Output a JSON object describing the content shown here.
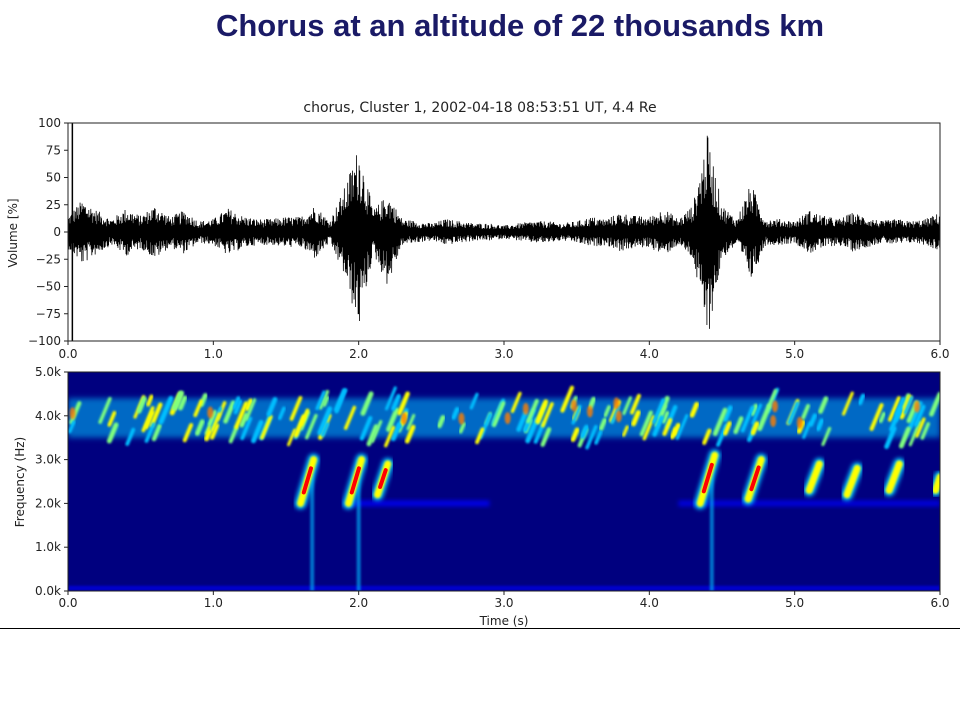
{
  "slide": {
    "title": "Chorus at an altitude of 22 thousands km"
  },
  "chart_data": [
    {
      "type": "line",
      "title": "chorus, Cluster 1, 2002-04-18 08:53:51 UT, 4.4 Re",
      "xlabel": "",
      "ylabel": "Volume [%]",
      "xlim": [
        0,
        6
      ],
      "ylim": [
        -100,
        100
      ],
      "xticks": [
        0.0,
        1.0,
        2.0,
        3.0,
        4.0,
        5.0,
        6.0
      ],
      "xtick_labels": [
        "0.0",
        "1.0",
        "2.0",
        "3.0",
        "4.0",
        "5.0",
        "6.0"
      ],
      "yticks": [
        100,
        75,
        50,
        25,
        0,
        -25,
        -50,
        -75,
        -100
      ],
      "ytick_labels": [
        "100",
        "75",
        "50",
        "25",
        "0",
        "−25",
        "−50",
        "−75",
        "−100"
      ],
      "color": "#000000",
      "grid": false,
      "series": [
        {
          "x": [
            0.0,
            0.1,
            0.2,
            0.3,
            0.4,
            0.5,
            0.6,
            0.7,
            0.8,
            0.9,
            1.0,
            1.1,
            1.2,
            1.3,
            1.4,
            1.5,
            1.6,
            1.7,
            1.8,
            1.9,
            2.0,
            2.1,
            2.2,
            2.3,
            2.4,
            2.5,
            2.6,
            2.7,
            2.8,
            2.9,
            3.0,
            3.1,
            3.2,
            3.3,
            3.4,
            3.5,
            3.6,
            3.7,
            3.8,
            3.9,
            4.0,
            4.1,
            4.2,
            4.3,
            4.4,
            4.5,
            4.6,
            4.7,
            4.8,
            4.9,
            5.0,
            5.1,
            5.2,
            5.3,
            5.4,
            5.5,
            5.6,
            5.7,
            5.8,
            5.9,
            6.0
          ],
          "y_max": [
            15,
            30,
            20,
            12,
            22,
            15,
            25,
            14,
            20,
            10,
            12,
            22,
            15,
            12,
            12,
            14,
            14,
            25,
            10,
            40,
            80,
            20,
            35,
            12,
            10,
            8,
            12,
            10,
            8,
            8,
            6,
            8,
            10,
            10,
            8,
            10,
            14,
            12,
            18,
            15,
            14,
            22,
            12,
            25,
            90,
            25,
            12,
            45,
            12,
            12,
            10,
            20,
            15,
            12,
            18,
            14,
            10,
            12,
            10,
            12,
            18
          ],
          "y_min": [
            -15,
            -30,
            -20,
            -12,
            -22,
            -15,
            -25,
            -14,
            -20,
            -10,
            -12,
            -22,
            -15,
            -12,
            -12,
            -14,
            -14,
            -25,
            -10,
            -40,
            -90,
            -20,
            -50,
            -12,
            -10,
            -8,
            -12,
            -10,
            -8,
            -8,
            -6,
            -8,
            -10,
            -10,
            -8,
            -10,
            -14,
            -12,
            -18,
            -15,
            -14,
            -22,
            -12,
            -25,
            -100,
            -25,
            -12,
            -45,
            -12,
            -12,
            -10,
            -20,
            -15,
            -12,
            -18,
            -14,
            -10,
            -12,
            -10,
            -12,
            -18
          ]
        }
      ]
    },
    {
      "type": "heatmap",
      "title": "",
      "xlabel": "Time (s)",
      "ylabel": "Frequency (Hz)",
      "xlim": [
        0,
        6
      ],
      "ylim": [
        0,
        5000
      ],
      "xticks": [
        0.0,
        1.0,
        2.0,
        3.0,
        4.0,
        5.0,
        6.0
      ],
      "xtick_labels": [
        "0.0",
        "1.0",
        "2.0",
        "3.0",
        "4.0",
        "5.0",
        "6.0"
      ],
      "yticks": [
        0,
        1000,
        2000,
        3000,
        4000,
        5000
      ],
      "ytick_labels": [
        "0.0k",
        "1.0k",
        "2.0k",
        "3.0k",
        "4.0k",
        "5.0k"
      ],
      "colormap": [
        "#00007f",
        "#0000ff",
        "#00bfff",
        "#7fff7f",
        "#ffff00",
        "#ff7f00",
        "#ff0000",
        "#7f0000"
      ],
      "background_color": "#00007f",
      "grid": false,
      "upper_band_hz": [
        3500,
        4400
      ],
      "weak_line_hz": 2000,
      "elements": [
        {
          "t_start": 1.6,
          "t_end": 1.69,
          "f_start": 2000,
          "f_end": 3000,
          "intensity": 0.9
        },
        {
          "t_start": 1.93,
          "t_end": 2.02,
          "f_start": 2000,
          "f_end": 3000,
          "intensity": 1.0
        },
        {
          "t_start": 2.13,
          "t_end": 2.2,
          "f_start": 2200,
          "f_end": 2900,
          "intensity": 0.8
        },
        {
          "t_start": 4.35,
          "t_end": 4.45,
          "f_start": 2000,
          "f_end": 3100,
          "intensity": 1.0
        },
        {
          "t_start": 4.68,
          "t_end": 4.77,
          "f_start": 2100,
          "f_end": 3000,
          "intensity": 0.8
        },
        {
          "t_start": 5.1,
          "t_end": 5.17,
          "f_start": 2300,
          "f_end": 2900,
          "intensity": 0.6
        },
        {
          "t_start": 5.36,
          "t_end": 5.43,
          "f_start": 2200,
          "f_end": 2800,
          "intensity": 0.5
        },
        {
          "t_start": 5.65,
          "t_end": 5.72,
          "f_start": 2300,
          "f_end": 2900,
          "intensity": 0.6
        },
        {
          "t_start": 5.97,
          "t_end": 6.0,
          "f_start": 2300,
          "f_end": 2600,
          "intensity": 0.4
        }
      ],
      "vertical_streaks_t": [
        1.68,
        2.0,
        4.43
      ]
    }
  ]
}
